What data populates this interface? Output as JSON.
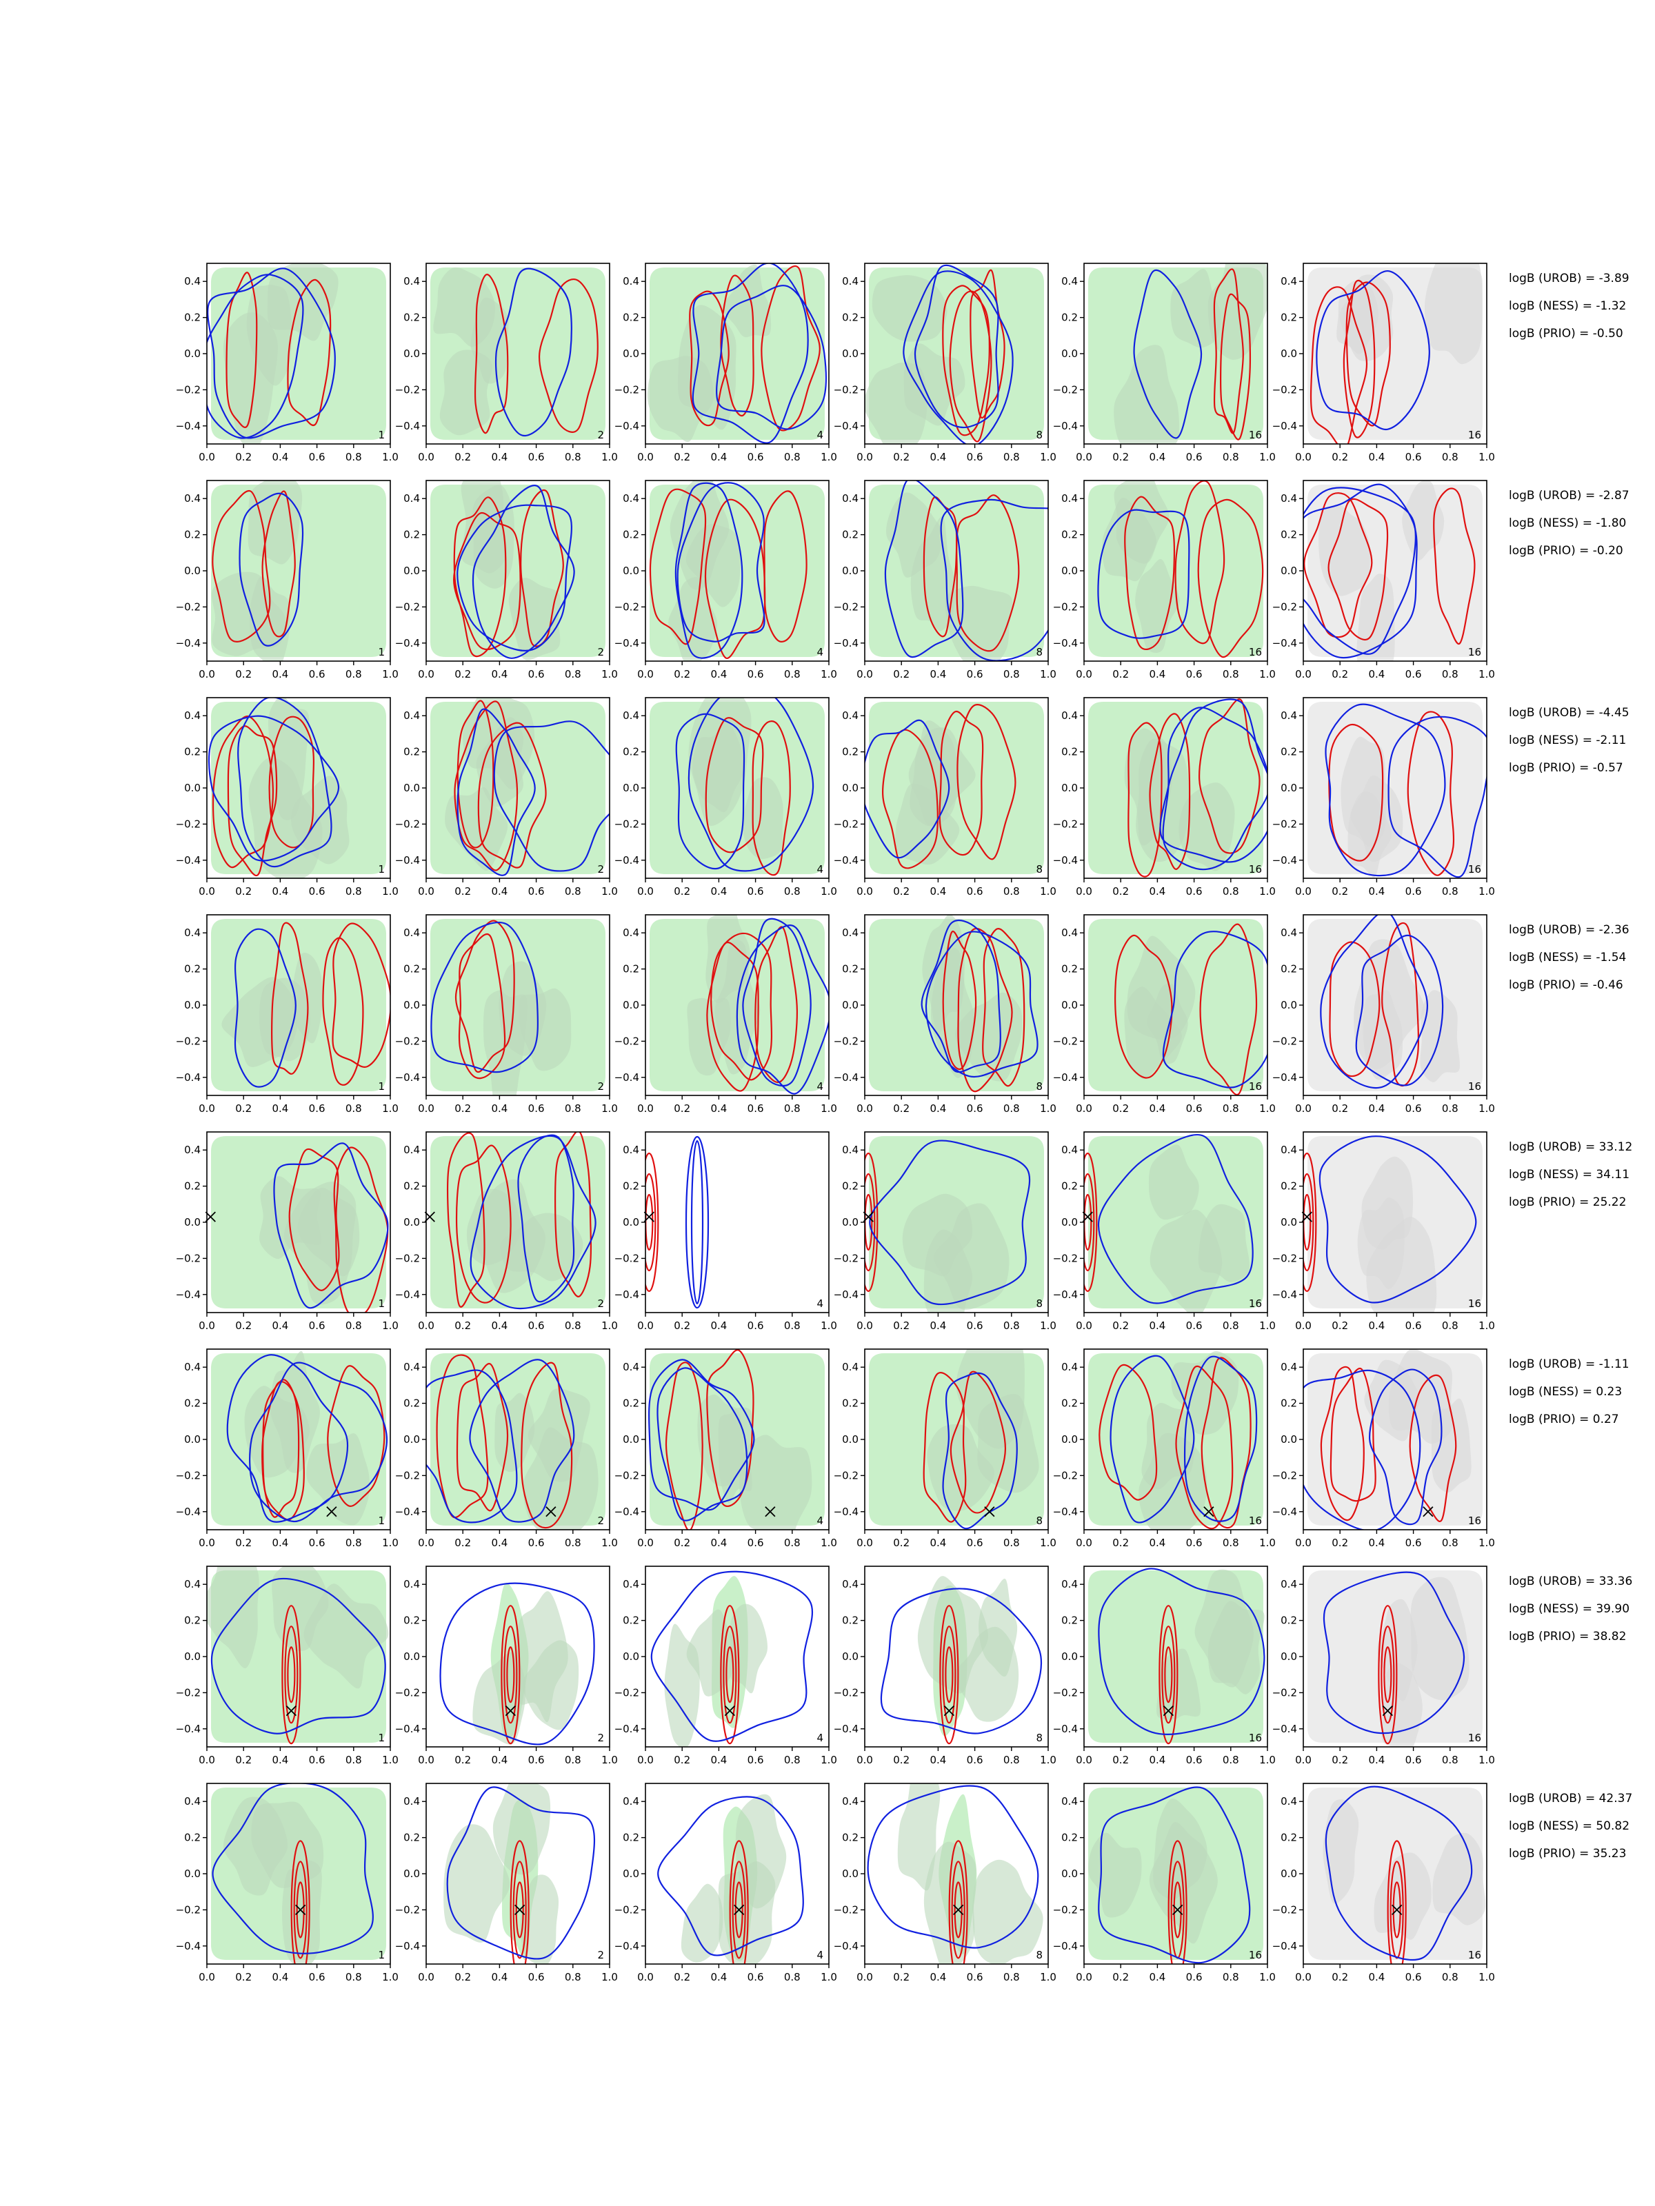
{
  "chart_data": {
    "type": "contour",
    "xlim": [
      0.0,
      1.0
    ],
    "ylim": [
      -0.5,
      0.5
    ],
    "x_ticks": [
      "0.0",
      "0.2",
      "0.4",
      "0.6",
      "0.8",
      "1.0"
    ],
    "y_ticks": [
      "0.4",
      "0.2",
      "0.0",
      "−0.2",
      "−0.4"
    ],
    "column_labels": [
      "1",
      "2",
      "4",
      "8",
      "16",
      "16"
    ],
    "grid": false,
    "rows": [
      {
        "logb": [
          "logB (UROB) = -3.89",
          "logB (NESS) = -1.32",
          "logB (PRIO) = -0.50"
        ],
        "marker": null
      },
      {
        "logb": [
          "logB (UROB) = -2.87",
          "logB (NESS) = -1.80",
          "logB (PRIO) = -0.20"
        ],
        "marker": null
      },
      {
        "logb": [
          "logB (UROB) = -4.45",
          "logB (NESS) = -2.11",
          "logB (PRIO) = -0.57"
        ],
        "marker": null
      },
      {
        "logb": [
          "logB (UROB) = -2.36",
          "logB (NESS) = -1.54",
          "logB (PRIO) = -0.46"
        ],
        "marker": null
      },
      {
        "logb": [
          "logB (UROB) = 33.12",
          "logB (NESS) = 34.11",
          "logB (PRIO) = 25.22"
        ],
        "marker": [
          0.02,
          0.03
        ]
      },
      {
        "logb": [
          "logB (UROB) = -1.11",
          "logB (NESS) = 0.23",
          "logB (PRIO) = 0.27"
        ],
        "marker": [
          0.68,
          -0.4
        ]
      },
      {
        "logb": [
          "logB (UROB) = 33.36",
          "logB (NESS) = 39.90",
          "logB (PRIO) = 38.82"
        ],
        "marker": [
          0.46,
          -0.3
        ]
      },
      {
        "logb": [
          "logB (UROB) = 42.37",
          "logB (NESS) = 50.82",
          "logB (PRIO) = 35.23"
        ],
        "marker": [
          0.51,
          -0.2
        ]
      }
    ],
    "colors": {
      "fill_green": "#c9f0c9",
      "fill_grey": "#d8d8d8",
      "fill_light_grey": "#ececec",
      "contour_red": "#e01010",
      "contour_blue": "#1020e0",
      "marker": "#000000"
    }
  }
}
